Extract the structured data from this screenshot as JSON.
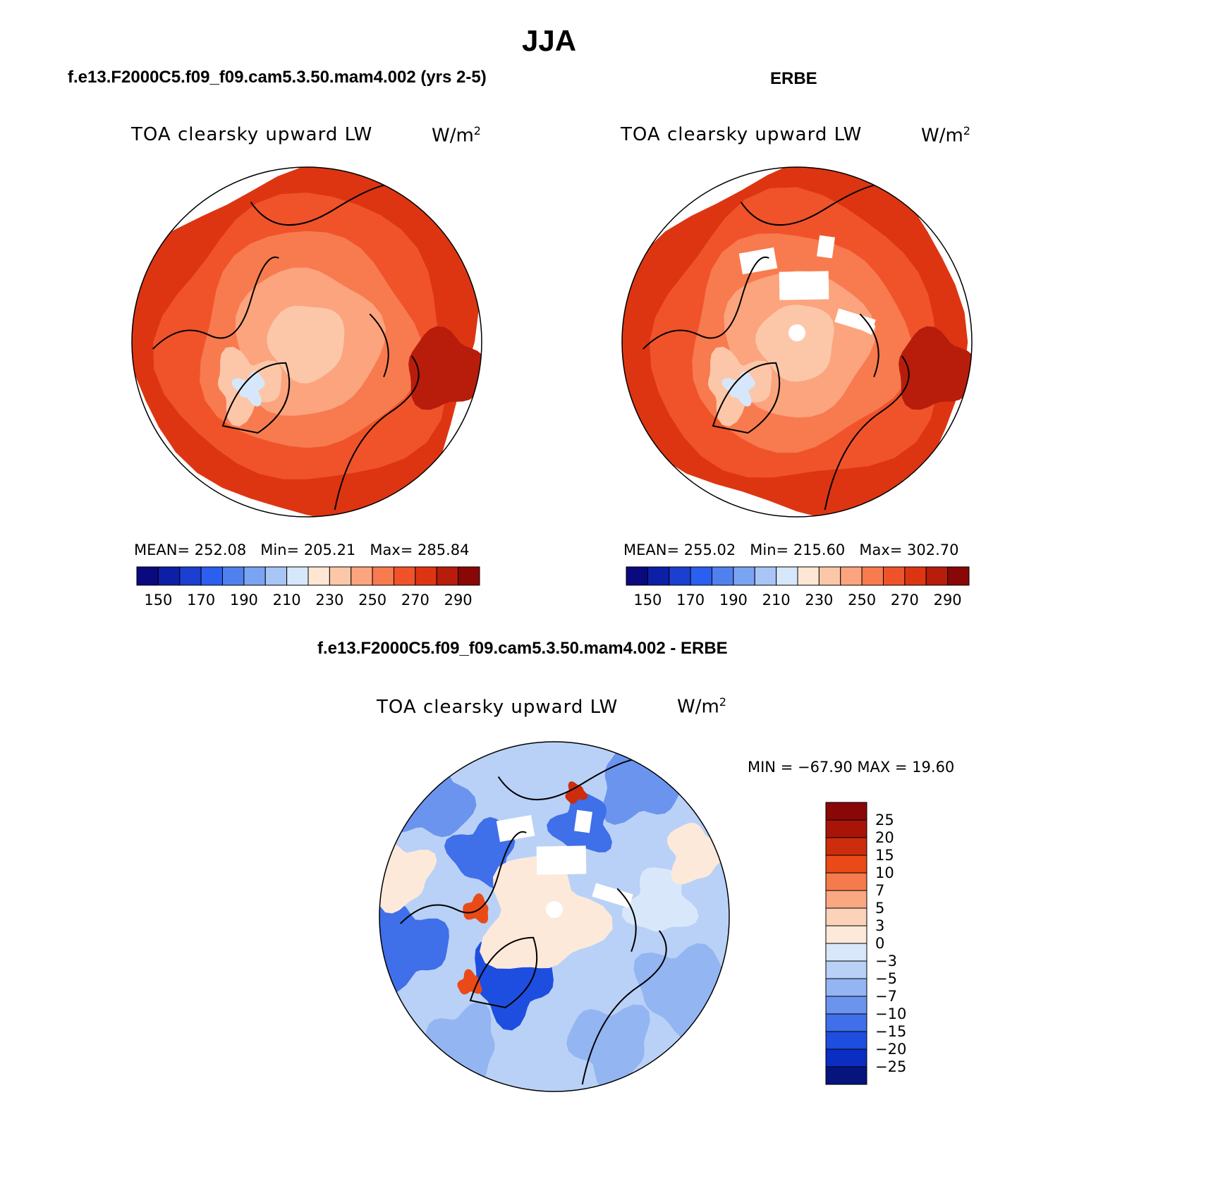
{
  "figure_title": "JJA",
  "chart_data": [
    {
      "type": "heatmap",
      "projection": "north polar stereographic",
      "case_title": "f.e13.F2000C5.f09_f09.cam5.3.50.mam4.002 (yrs 2-5)",
      "variable": "TOA clearsky upward LW",
      "units": "W/m",
      "units_exp": "2",
      "stats": {
        "mean_label": "MEAN=",
        "mean": "252.08",
        "min_label": "Min=",
        "min": "205.21",
        "max_label": "Max=",
        "max": "285.84"
      },
      "colorbar": {
        "levels": [
          150,
          160,
          170,
          180,
          190,
          200,
          210,
          220,
          230,
          240,
          250,
          260,
          270,
          280,
          290
        ],
        "tick_labels": [
          "150",
          "170",
          "190",
          "210",
          "230",
          "250",
          "270",
          "290"
        ]
      }
    },
    {
      "type": "heatmap",
      "projection": "north polar stereographic",
      "case_title": "ERBE",
      "variable": "TOA clearsky upward LW",
      "units": "W/m",
      "units_exp": "2",
      "stats": {
        "mean_label": "MEAN=",
        "mean": "255.02",
        "min_label": "Min=",
        "min": "215.60",
        "max_label": "Max=",
        "max": "302.70"
      },
      "colorbar": {
        "levels": [
          150,
          160,
          170,
          180,
          190,
          200,
          210,
          220,
          230,
          240,
          250,
          260,
          270,
          280,
          290
        ],
        "tick_labels": [
          "150",
          "170",
          "190",
          "210",
          "230",
          "250",
          "270",
          "290"
        ]
      }
    },
    {
      "type": "heatmap",
      "projection": "north polar stereographic",
      "case_title": "f.e13.F2000C5.f09_f09.cam5.3.50.mam4.002 - ERBE",
      "variable": "TOA clearsky upward LW",
      "units": "W/m",
      "units_exp": "2",
      "stats_text": "MIN = −67.90 MAX =  19.60",
      "colorbar": {
        "levels": [
          25,
          20,
          15,
          10,
          7,
          5,
          3,
          0,
          -3,
          -5,
          -7,
          -10,
          -15,
          -20,
          -25
        ],
        "tick_labels": [
          "25",
          "20",
          "15",
          "10",
          "7",
          "5",
          "3",
          "0",
          "−3",
          "−5",
          "−7",
          "−10",
          "−15",
          "−20",
          "−25"
        ]
      }
    }
  ],
  "colors": {
    "abs_palette": [
      "#0a0a7e",
      "#0d1fa6",
      "#1a3fd1",
      "#2b5ff0",
      "#4f82ee",
      "#7aa4f2",
      "#a9c5f6",
      "#d6e7fb",
      "#fde6d3",
      "#fcc7a8",
      "#fba47e",
      "#f77b4f",
      "#f0532a",
      "#dd3512",
      "#b81d0b",
      "#8a0707"
    ],
    "diff_palette": [
      "#8a0707",
      "#a81508",
      "#cc2d0c",
      "#ea4a18",
      "#f57a4c",
      "#f9a882",
      "#fcd2b8",
      "#fde9da",
      "#d8e8fa",
      "#b9d1f6",
      "#93b5f2",
      "#6a94ee",
      "#3f6fe9",
      "#1e4ee0",
      "#0c2dc2",
      "#06147e"
    ]
  }
}
